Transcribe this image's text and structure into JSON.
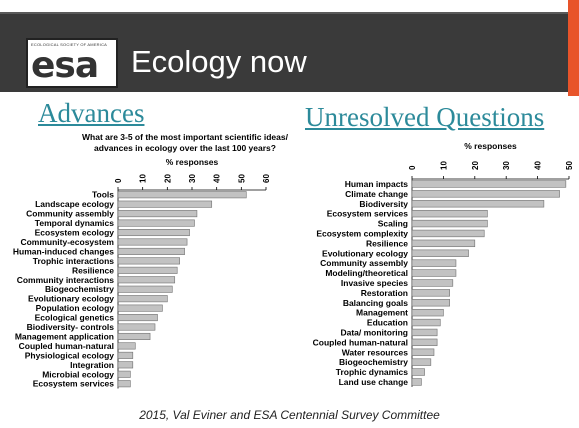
{
  "header": {
    "logo_text": "esa",
    "logo_org_text": "ECOLOGICAL SOCIETY OF AMERICA",
    "title": "Ecology now"
  },
  "left_panel": {
    "title": "Advances"
  },
  "right_panel": {
    "title": "Unresolved Questions"
  },
  "footer": {
    "citation": "2015, Val Eviner and ESA Centennial Survey Committee"
  },
  "colors": {
    "banner": "#3a3a3a",
    "accent": "#e8542a",
    "panel_title": "#2c8a9a",
    "bar_fill": "#c2c2c2"
  },
  "chart_data": [
    {
      "type": "bar",
      "orientation": "horizontal",
      "title": "What are 3-5 of the most important scientific ideas/ advances in ecology over the last 100 years?",
      "xlabel": "% responses",
      "xlim": [
        0,
        60
      ],
      "xticks": [
        "0",
        "10",
        "20",
        "30",
        "40",
        "50",
        "60"
      ],
      "categories": [
        "Tools",
        "Landscape ecology",
        "Community assembly",
        "Temporal dynamics",
        "Ecosystem ecology",
        "Community-ecosystem",
        "Human-induced changes",
        "Trophic interactions",
        "Resilience",
        "Community interactions",
        "Biogeochemistry",
        "Evolutionary ecology",
        "Population ecology",
        "Ecological genetics",
        "Biodiversity- controls",
        "Management application",
        "Coupled human-natural",
        "Physiological ecology",
        "Integration",
        "Microbial ecology",
        "Ecosystem services"
      ],
      "values": [
        52,
        38,
        32,
        31,
        29,
        28,
        27,
        25,
        24,
        23,
        22,
        20,
        18,
        16,
        15,
        13,
        7,
        6,
        6,
        5,
        5
      ],
      "grid": false
    },
    {
      "type": "bar",
      "orientation": "horizontal",
      "xlabel": "% responses",
      "xlim": [
        0,
        50
      ],
      "xticks": [
        "0",
        "10",
        "20",
        "30",
        "40",
        "50"
      ],
      "categories": [
        "Human impacts",
        "Climate change",
        "Biodiversity",
        "Ecosystem services",
        "Scaling",
        "Ecosystem complexity",
        "Resilience",
        "Evolutionary ecology",
        "Community assembly",
        "Modeling/theoretical",
        "Invasive species",
        "Restoration",
        "Balancing goals",
        "Management",
        "Education",
        "Data/ monitoring",
        "Coupled human-natural",
        "Water resources",
        "Biogeochemistry",
        "Trophic dynamics",
        "Land use change"
      ],
      "values": [
        49,
        47,
        42,
        24,
        24,
        23,
        20,
        18,
        14,
        14,
        13,
        12,
        12,
        10,
        9,
        8,
        8,
        7,
        6,
        4,
        3
      ],
      "grid": false
    }
  ]
}
